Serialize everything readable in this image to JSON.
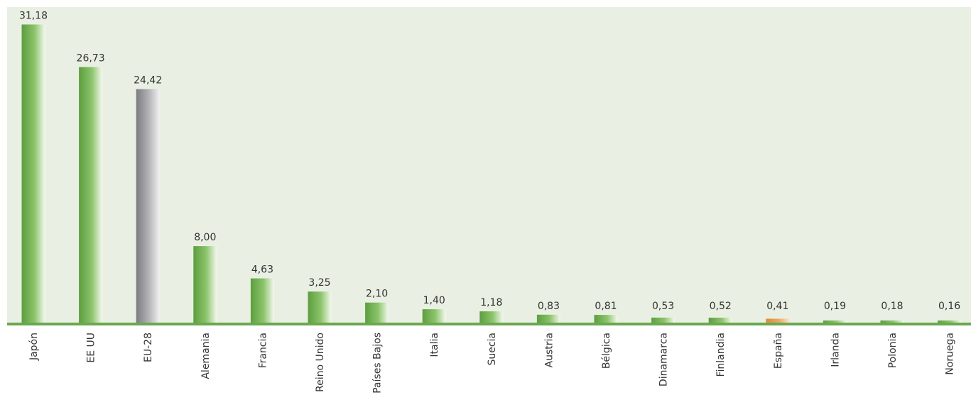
{
  "colors": {
    "plot_background": "#e9f0e3",
    "baseline": "#6aa84f",
    "bar_green": "#6ab04c",
    "bar_gray": "#9a9a9c",
    "bar_orange": "#e0954a",
    "label_text": "#333333"
  },
  "chart_data": {
    "type": "bar",
    "title": "",
    "xlabel": "",
    "ylabel": "",
    "grid": false,
    "ylim": [
      0,
      33
    ],
    "categories": [
      "Japón",
      "EE UU",
      "EU-28",
      "Alemania",
      "Francia",
      "Reino Unido",
      "Países Bajos",
      "Italia",
      "Suecia",
      "Austria",
      "Bélgica",
      "Dinamarca",
      "Finlandia",
      "España",
      "Irlanda",
      "Polonia",
      "Noruega"
    ],
    "values": [
      31.18,
      26.73,
      24.42,
      8.0,
      4.63,
      3.25,
      2.1,
      1.4,
      1.18,
      0.83,
      0.81,
      0.53,
      0.52,
      0.41,
      0.19,
      0.18,
      0.16
    ],
    "value_labels": [
      "31,18",
      "26,73",
      "24,42",
      "8,00",
      "4,63",
      "3,25",
      "2,10",
      "1,40",
      "1,18",
      "0,83",
      "0,81",
      "0,53",
      "0,52",
      "0,41",
      "0,19",
      "0,18",
      "0,16"
    ],
    "bar_colors": [
      "green",
      "green",
      "gray",
      "green",
      "green",
      "green",
      "green",
      "green",
      "green",
      "green",
      "green",
      "green",
      "green",
      "orange",
      "green",
      "green",
      "green"
    ]
  }
}
